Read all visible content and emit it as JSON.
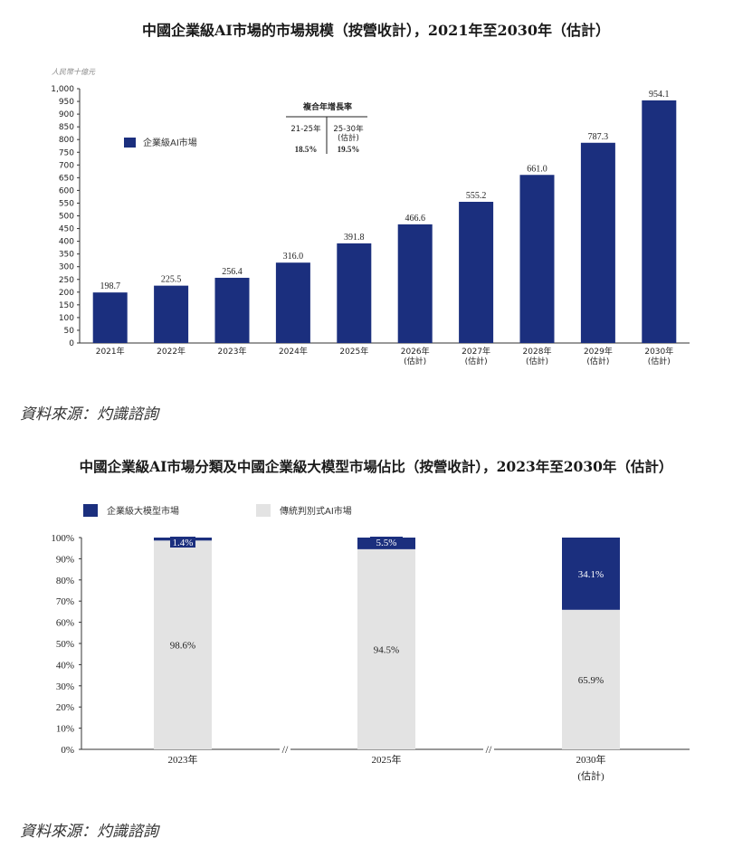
{
  "title1": "中國企業級AI市場的市場規模（按營收計），2021年至2030年（估計）",
  "title2": "中國企業級AI市場分類及中國企業級大模型市場佔比（按營收計），2023年至2030年（估計）",
  "source1": "資料來源：灼識諮詢",
  "source2": "資料來源：灼識諮詢",
  "colors": {
    "navy": "#1b2f7e",
    "grey": "#e3e3e3"
  },
  "chart_data": [
    {
      "type": "bar",
      "unit": "人民幣十億元",
      "categories": [
        "2021年",
        "2022年",
        "2023年",
        "2024年",
        "2025年",
        "2026年",
        "2027年",
        "2028年",
        "2029年",
        "2030年"
      ],
      "category_notes": [
        "",
        "",
        "",
        "",
        "",
        "(估計)",
        "(估計)",
        "(估計)",
        "(估計)",
        "(估計)"
      ],
      "series": [
        {
          "name": "企業級AI市場",
          "values": [
            198.7,
            225.5,
            256.4,
            316.0,
            391.8,
            466.6,
            555.2,
            661.0,
            787.3,
            954.1
          ]
        }
      ],
      "data_labels": [
        "198.7",
        "225.5",
        "256.4",
        "316.0",
        "391.8",
        "466.6",
        "555.2",
        "661.0",
        "787.3",
        "954.1"
      ],
      "ylim": [
        0,
        1000
      ],
      "yticks": [
        "0",
        "50",
        "100",
        "150",
        "200",
        "250",
        "300",
        "350",
        "400",
        "450",
        "500",
        "550",
        "600",
        "650",
        "700",
        "750",
        "800",
        "850",
        "900",
        "950",
        "1,000"
      ],
      "legend": "left",
      "cagr": {
        "title": "複合年增長率",
        "periods": [
          {
            "label": "21-25年",
            "note": "",
            "value": "18.5%"
          },
          {
            "label": "25-30年",
            "note": "(估計)",
            "value": "19.5%"
          }
        ]
      }
    },
    {
      "type": "bar",
      "stacked": true,
      "categories": [
        "2023年",
        "2025年",
        "2030年"
      ],
      "category_notes": [
        "",
        "",
        "(估計)"
      ],
      "series": [
        {
          "name": "企業級大模型市場",
          "values": [
            1.4,
            5.5,
            34.1
          ],
          "labels": [
            "1.4%",
            "5.5%",
            "34.1%"
          ]
        },
        {
          "name": "傳統判別式AI市場",
          "values": [
            98.6,
            94.5,
            65.9
          ],
          "labels": [
            "98.6%",
            "94.5%",
            "65.9%"
          ]
        }
      ],
      "ylim": [
        0,
        100
      ],
      "yticks": [
        "0%",
        "10%",
        "20%",
        "30%",
        "40%",
        "50%",
        "60%",
        "70%",
        "80%",
        "90%",
        "100%"
      ],
      "legend": "top-left",
      "axis_break": "//"
    }
  ]
}
